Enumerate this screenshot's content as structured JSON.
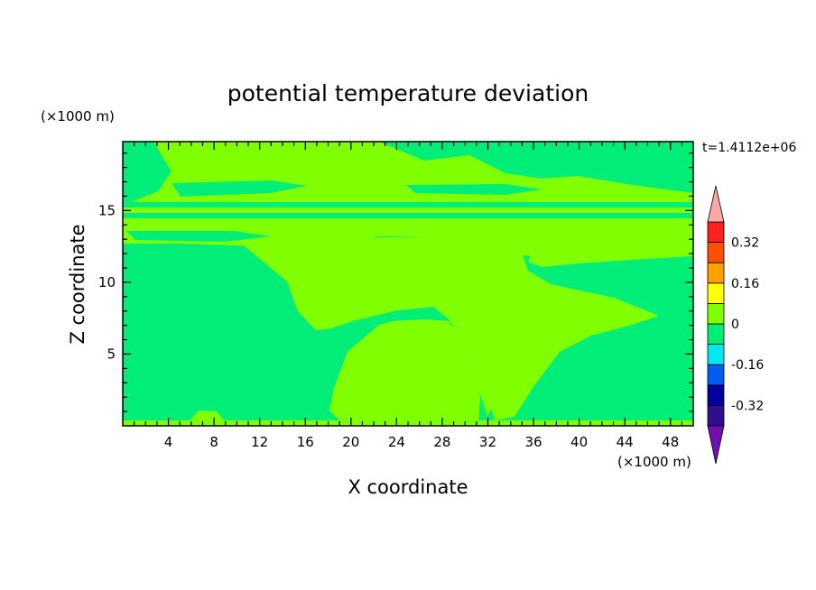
{
  "chart_data": {
    "type": "heatmap",
    "title": "potential temperature deviation",
    "xlabel": "X coordinate",
    "ylabel": "Z coordinate",
    "x_unit": "(×1000 m)",
    "y_unit": "(×1000 m)",
    "time_label": "t=1.4112e+06",
    "xlim": [
      0,
      50
    ],
    "ylim": [
      0,
      19.8
    ],
    "x_ticks": [
      4,
      8,
      12,
      16,
      20,
      24,
      28,
      32,
      36,
      40,
      44,
      48
    ],
    "y_ticks": [
      5,
      10,
      15
    ],
    "colorbar": {
      "levels": [
        -0.4,
        -0.32,
        -0.24,
        -0.16,
        -0.08,
        0,
        0.08,
        0.16,
        0.24,
        0.32,
        0.4
      ],
      "labels": [
        "0.32",
        "0.16",
        "0",
        "-0.16",
        "-0.32"
      ],
      "label_values": [
        0.32,
        0.16,
        0,
        -0.16,
        -0.32
      ],
      "colors": [
        "#2f0f8f",
        "#0000a0",
        "#005ff0",
        "#00e8f0",
        "#00ee78",
        "#7fff00",
        "#ffff00",
        "#ffa000",
        "#ff5000",
        "#ff1f1f"
      ],
      "extend_low_color": "#7010b0",
      "extend_high_color": "#f8a8a8"
    }
  }
}
